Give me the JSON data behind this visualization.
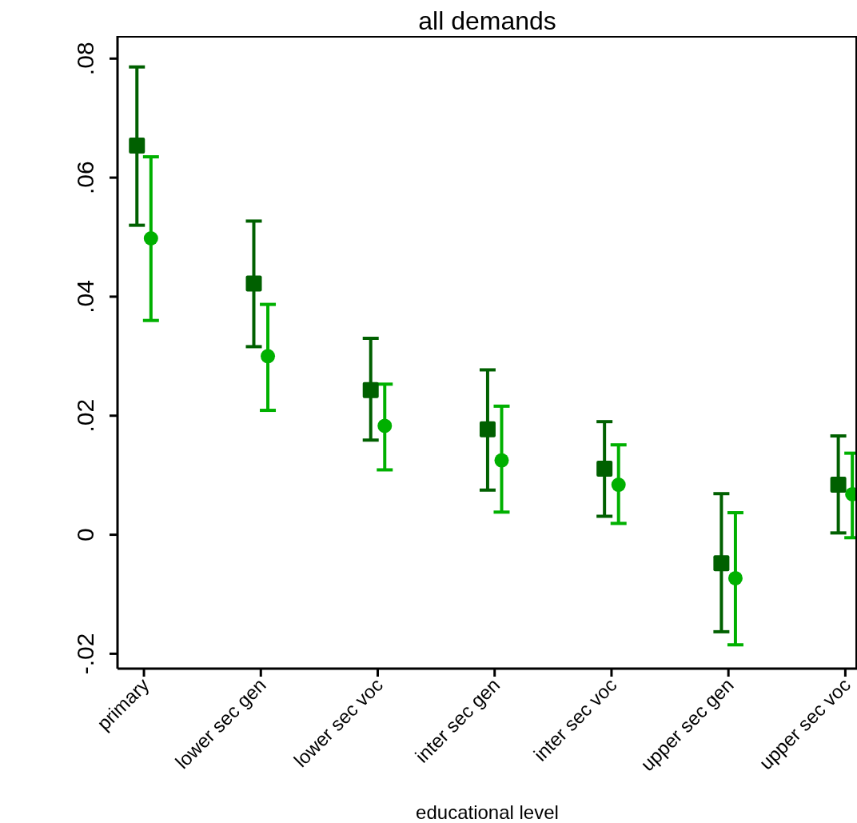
{
  "chart_data": {
    "type": "scatter",
    "title": "all demands",
    "xlabel": "educational level",
    "categories": [
      "primary",
      "lower sec gen",
      "lower sec voc",
      "inter sec gen",
      "inter sec voc",
      "upper sec gen",
      "upper sec voc"
    ],
    "series": [
      {
        "color": "#006000",
        "marker": "square",
        "values": [
          0.0654,
          0.0422,
          0.0243,
          0.0177,
          0.0111,
          -0.0048,
          0.0084
        ],
        "errors": [
          [
            0.052,
            0.0786
          ],
          [
            0.0316,
            0.0527
          ],
          [
            0.0159,
            0.033
          ],
          [
            0.0075,
            0.0277
          ],
          [
            0.0031,
            0.019
          ],
          [
            -0.0163,
            0.0069
          ],
          [
            0.0003,
            0.0166
          ]
        ]
      },
      {
        "color": "#00b000",
        "marker": "circle",
        "values": [
          0.0498,
          0.03,
          0.0183,
          0.0125,
          0.0084,
          -0.0073,
          0.0068
        ],
        "errors": [
          [
            0.036,
            0.0635
          ],
          [
            0.0209,
            0.0387
          ],
          [
            0.0109,
            0.0253
          ],
          [
            0.0038,
            0.0216
          ],
          [
            0.0019,
            0.0151
          ],
          [
            -0.0185,
            0.0037
          ],
          [
            -0.0005,
            0.0137
          ]
        ]
      }
    ],
    "ylim": [
      -0.0225,
      0.0838
    ],
    "yticks": [
      {
        "value": -0.02,
        "label": "-.02"
      },
      0,
      {
        "value": 0.02,
        "label": ".02"
      },
      {
        "value": 0.04,
        "label": ".04"
      },
      {
        "value": 0.06,
        "label": ".06"
      },
      {
        "value": 0.08,
        "label": ".08"
      }
    ],
    "tick_labels": [
      "x",
      "y"
    ]
  }
}
